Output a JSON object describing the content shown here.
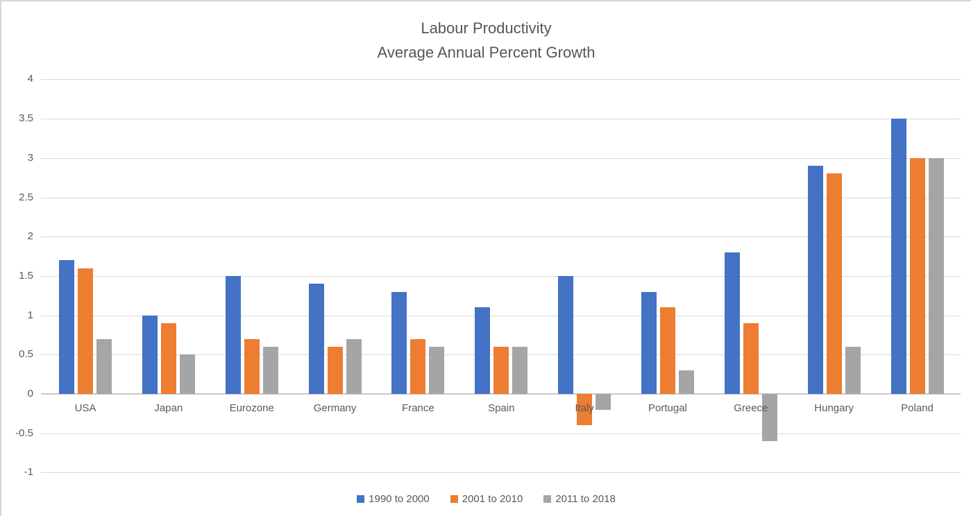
{
  "chart_data": {
    "type": "bar",
    "title": "Labour Productivity",
    "subtitle": "Average Annual Percent Growth",
    "xlabel": "",
    "ylabel": "",
    "categories": [
      "USA",
      "Japan",
      "Eurozone",
      "Germany",
      "France",
      "Spain",
      "Italy",
      "Portugal",
      "Greece",
      "Hungary",
      "Poland"
    ],
    "series": [
      {
        "name": "1990 to 2000",
        "color": "#4472C4",
        "values": [
          1.7,
          1.0,
          1.5,
          1.4,
          1.3,
          1.1,
          1.5,
          1.3,
          1.8,
          2.9,
          3.5
        ]
      },
      {
        "name": "2001 to 2010",
        "color": "#ED7D31",
        "values": [
          1.6,
          0.9,
          0.7,
          0.6,
          0.7,
          0.6,
          -0.4,
          1.1,
          0.9,
          2.8,
          3.0
        ]
      },
      {
        "name": "2011 to 2018",
        "color": "#A5A5A5",
        "values": [
          0.7,
          0.5,
          0.6,
          0.7,
          0.6,
          0.6,
          -0.2,
          0.3,
          -0.6,
          0.6,
          3.0
        ]
      }
    ],
    "ylim": [
      -1,
      4
    ],
    "yticks": [
      4,
      3.5,
      3,
      2.5,
      2,
      1.5,
      1,
      0.5,
      0,
      -0.5,
      -1
    ],
    "grid": true,
    "gridline_color": "#D9D9D9",
    "zero_axis_color": "#C8C8C8",
    "text_color": "#595959",
    "legend_position": "bottom"
  }
}
